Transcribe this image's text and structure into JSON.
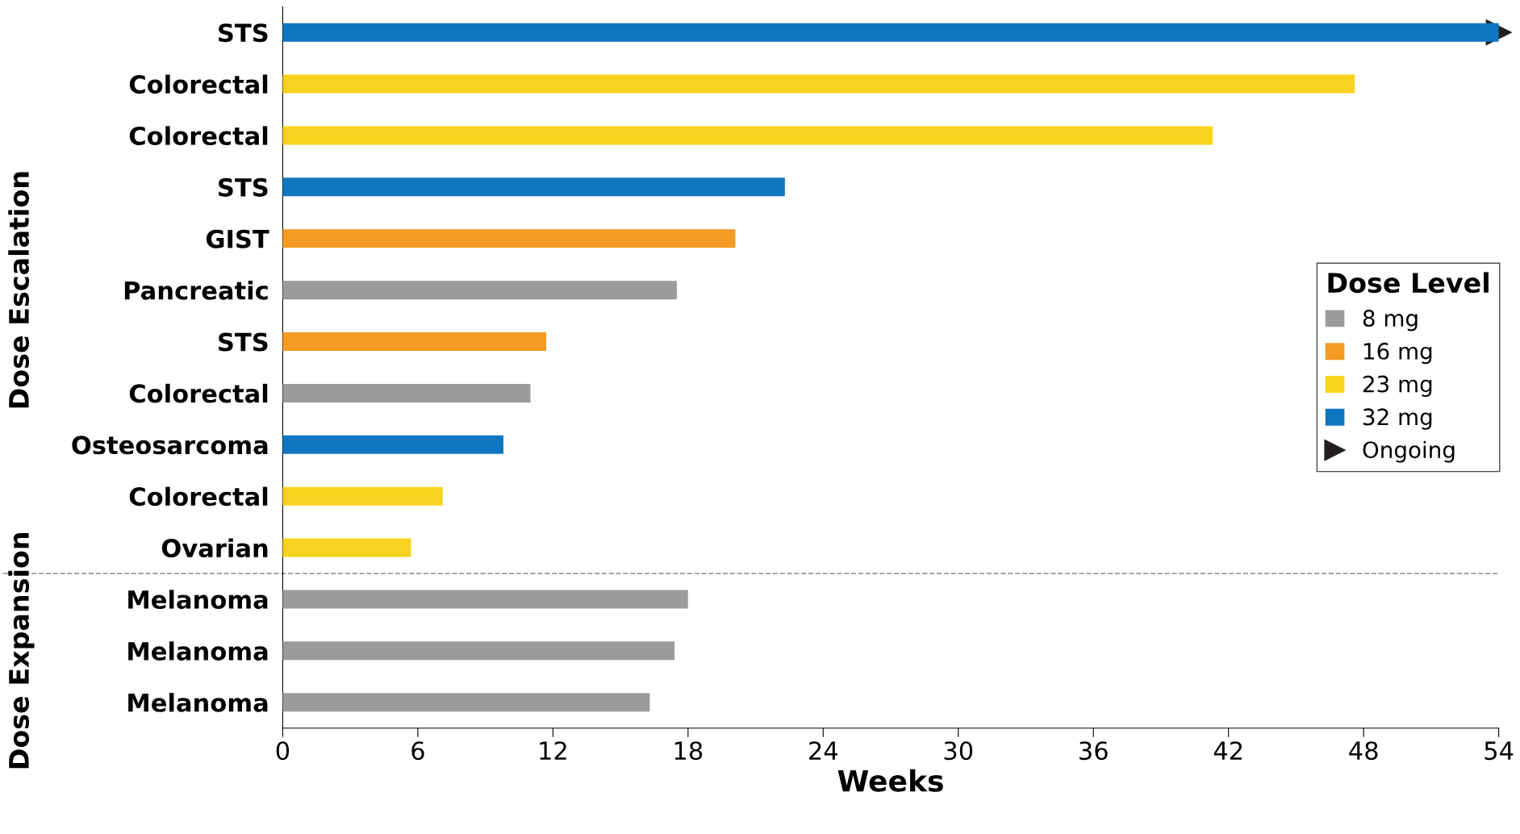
{
  "chart_data": {
    "type": "bar",
    "orientation": "horizontal",
    "xlabel": "Weeks",
    "categories": [
      "STS",
      "Colorectal",
      "Colorectal",
      "STS",
      "GIST",
      "Pancreatic",
      "STS",
      "Colorectal",
      "Osteosarcoma",
      "Colorectal",
      "Ovarian",
      "Melanoma",
      "Melanoma",
      "Melanoma"
    ],
    "series": [
      {
        "name": "8 mg",
        "color": "#9b9b9e",
        "values": [
          null,
          null,
          null,
          null,
          null,
          17.5,
          null,
          11.0,
          null,
          null,
          null,
          18.0,
          17.4,
          16.3
        ]
      },
      {
        "name": "16 mg",
        "color": "#f59a23",
        "values": [
          null,
          null,
          null,
          null,
          20.1,
          null,
          11.7,
          null,
          null,
          null,
          null,
          null,
          null,
          null
        ]
      },
      {
        "name": "23 mg",
        "color": "#f7d21e",
        "values": [
          null,
          47.6,
          41.3,
          null,
          null,
          null,
          null,
          null,
          null,
          7.1,
          5.7,
          null,
          null,
          null
        ]
      },
      {
        "name": "32 mg",
        "color": "#1176c0",
        "values": [
          54,
          null,
          null,
          22.3,
          null,
          null,
          null,
          null,
          9.8,
          null,
          null,
          null,
          null,
          null
        ]
      },
      {
        "name": "Ongoing",
        "type": "scatter",
        "marker": "triangle",
        "color": "#231f20",
        "values": [
          54,
          null,
          null,
          null,
          null,
          null,
          null,
          null,
          null,
          null,
          null,
          null,
          null,
          null
        ]
      }
    ],
    "legend_title": "Dose Level",
    "legend": "right",
    "annotations": [
      "Dose Escalation",
      "Dose Expansion"
    ],
    "xlim": [
      0,
      54
    ],
    "xticks": [
      0,
      6,
      12,
      18,
      24,
      30,
      36,
      42,
      48,
      54
    ],
    "grid": false
  }
}
